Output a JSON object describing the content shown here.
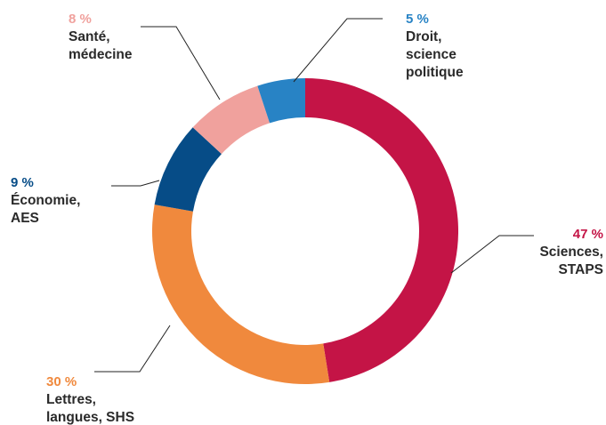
{
  "chart_data": {
    "type": "pie",
    "donut": true,
    "title": "",
    "unit": "%",
    "start_angle_deg": 0,
    "direction": "clockwise",
    "slices": [
      {
        "id": "sciences",
        "value": 47,
        "value_label": "47 %",
        "label_lines": [
          "Sciences,",
          "STAPS"
        ],
        "color": "#c41446"
      },
      {
        "id": "lettres",
        "value": 30,
        "value_label": "30 %",
        "label_lines": [
          "Lettres,",
          "langues, SHS"
        ],
        "color": "#f0893d"
      },
      {
        "id": "economie",
        "value": 9,
        "value_label": "9 %",
        "label_lines": [
          "Économie,",
          "AES"
        ],
        "color": "#064c87"
      },
      {
        "id": "sante",
        "value": 8,
        "value_label": "8 %",
        "label_lines": [
          "Santé,",
          "médecine"
        ],
        "color": "#f0a19d"
      },
      {
        "id": "droit",
        "value": 5,
        "value_label": "5 %",
        "label_lines": [
          "Droit,",
          "science",
          "politique"
        ],
        "color": "#2883c5"
      }
    ]
  }
}
